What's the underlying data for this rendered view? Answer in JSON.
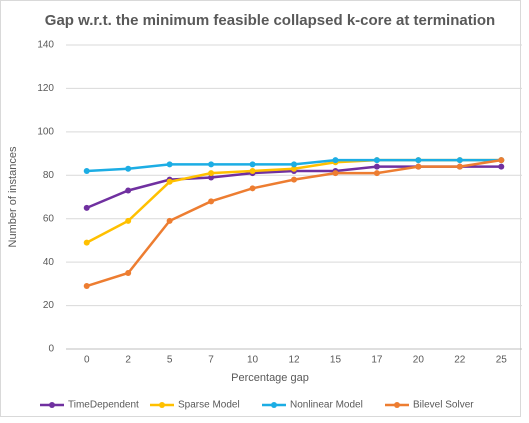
{
  "chart_data": {
    "type": "line",
    "title": "Gap w.r.t. the minimum feasible collapsed k-core at termination",
    "x_label": "Percentage gap",
    "y_label": "Number of instances",
    "categories": [
      "0",
      "2",
      "5",
      "7",
      "10",
      "12",
      "15",
      "17",
      "20",
      "22",
      "25"
    ],
    "series": [
      {
        "name": "TimeDependent",
        "color": "#7030a0",
        "values": [
          65,
          73,
          78,
          79,
          81,
          82,
          82,
          84,
          84,
          84,
          84
        ]
      },
      {
        "name": "Sparse Model",
        "color": "#ffc000",
        "values": [
          49,
          59,
          77,
          81,
          82,
          83,
          86,
          87,
          87,
          87,
          87
        ]
      },
      {
        "name": "Nonlinear Model",
        "color": "#1cade4",
        "values": [
          82,
          83,
          85,
          85,
          85,
          85,
          87,
          87,
          87,
          87,
          87
        ]
      },
      {
        "name": "Bilevel Solver",
        "color": "#ed7d31",
        "values": [
          29,
          35,
          59,
          68,
          74,
          78,
          81,
          81,
          84,
          84,
          87
        ]
      }
    ],
    "ylim": [
      0,
      140
    ],
    "yticks": [
      0,
      20,
      40,
      60,
      80,
      100,
      120,
      140
    ],
    "grid": true,
    "legend": "bottom"
  }
}
